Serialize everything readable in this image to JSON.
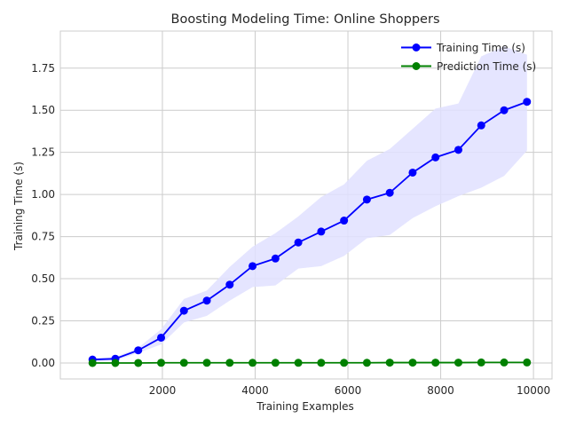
{
  "chart_data": {
    "type": "line",
    "title": "Boosting Modeling Time: Online Shoppers",
    "xlabel": "Training Examples",
    "ylabel": "Training Time (s)",
    "xlim": [
      -200,
      10400
    ],
    "ylim": [
      -0.095,
      1.97
    ],
    "x_ticks": [
      2000,
      4000,
      6000,
      8000,
      10000
    ],
    "y_ticks": [
      0.0,
      0.25,
      0.5,
      0.75,
      1.0,
      1.25,
      1.5,
      1.75
    ],
    "grid": true,
    "legend_position": "top-right",
    "x": [
      493,
      986,
      1479,
      1972,
      2465,
      2958,
      3451,
      3944,
      4437,
      4930,
      5423,
      5916,
      6409,
      6902,
      7395,
      7888,
      8381,
      8874,
      9367,
      9860
    ],
    "series": [
      {
        "name": "Training Time (s)",
        "color": "#0000ff",
        "band_color": "#e0e0ff",
        "values": [
          0.02,
          0.025,
          0.075,
          0.15,
          0.31,
          0.37,
          0.465,
          0.575,
          0.62,
          0.715,
          0.78,
          0.845,
          0.97,
          1.01,
          1.13,
          1.22,
          1.265,
          1.41,
          1.5,
          1.55
        ],
        "band_upper": [
          0.028,
          0.035,
          0.09,
          0.2,
          0.38,
          0.43,
          0.57,
          0.69,
          0.77,
          0.87,
          0.985,
          1.06,
          1.2,
          1.27,
          1.39,
          1.51,
          1.54,
          1.82,
          1.88,
          1.83
        ],
        "band_lower": [
          0.012,
          0.015,
          0.06,
          0.11,
          0.24,
          0.28,
          0.37,
          0.45,
          0.46,
          0.56,
          0.575,
          0.635,
          0.74,
          0.76,
          0.86,
          0.93,
          0.99,
          1.04,
          1.11,
          1.26
        ]
      },
      {
        "name": "Prediction Time (s)",
        "color": "#008000",
        "band_color": "#c8e6c8",
        "values": [
          0.0,
          0.0,
          0.0,
          0.001,
          0.001,
          0.001,
          0.001,
          0.001,
          0.001,
          0.001,
          0.001,
          0.001,
          0.001,
          0.002,
          0.002,
          0.002,
          0.002,
          0.003,
          0.003,
          0.003
        ],
        "band_upper": [
          0.001,
          0.001,
          0.001,
          0.002,
          0.002,
          0.002,
          0.002,
          0.002,
          0.002,
          0.002,
          0.002,
          0.002,
          0.002,
          0.003,
          0.003,
          0.003,
          0.003,
          0.005,
          0.005,
          0.005
        ],
        "band_lower": [
          0.0,
          0.0,
          0.0,
          0.0,
          0.0,
          0.0,
          0.0,
          0.0,
          0.0,
          0.0,
          0.0,
          0.0,
          0.0,
          0.001,
          0.001,
          0.001,
          0.001,
          0.001,
          0.001,
          0.001
        ]
      }
    ]
  }
}
